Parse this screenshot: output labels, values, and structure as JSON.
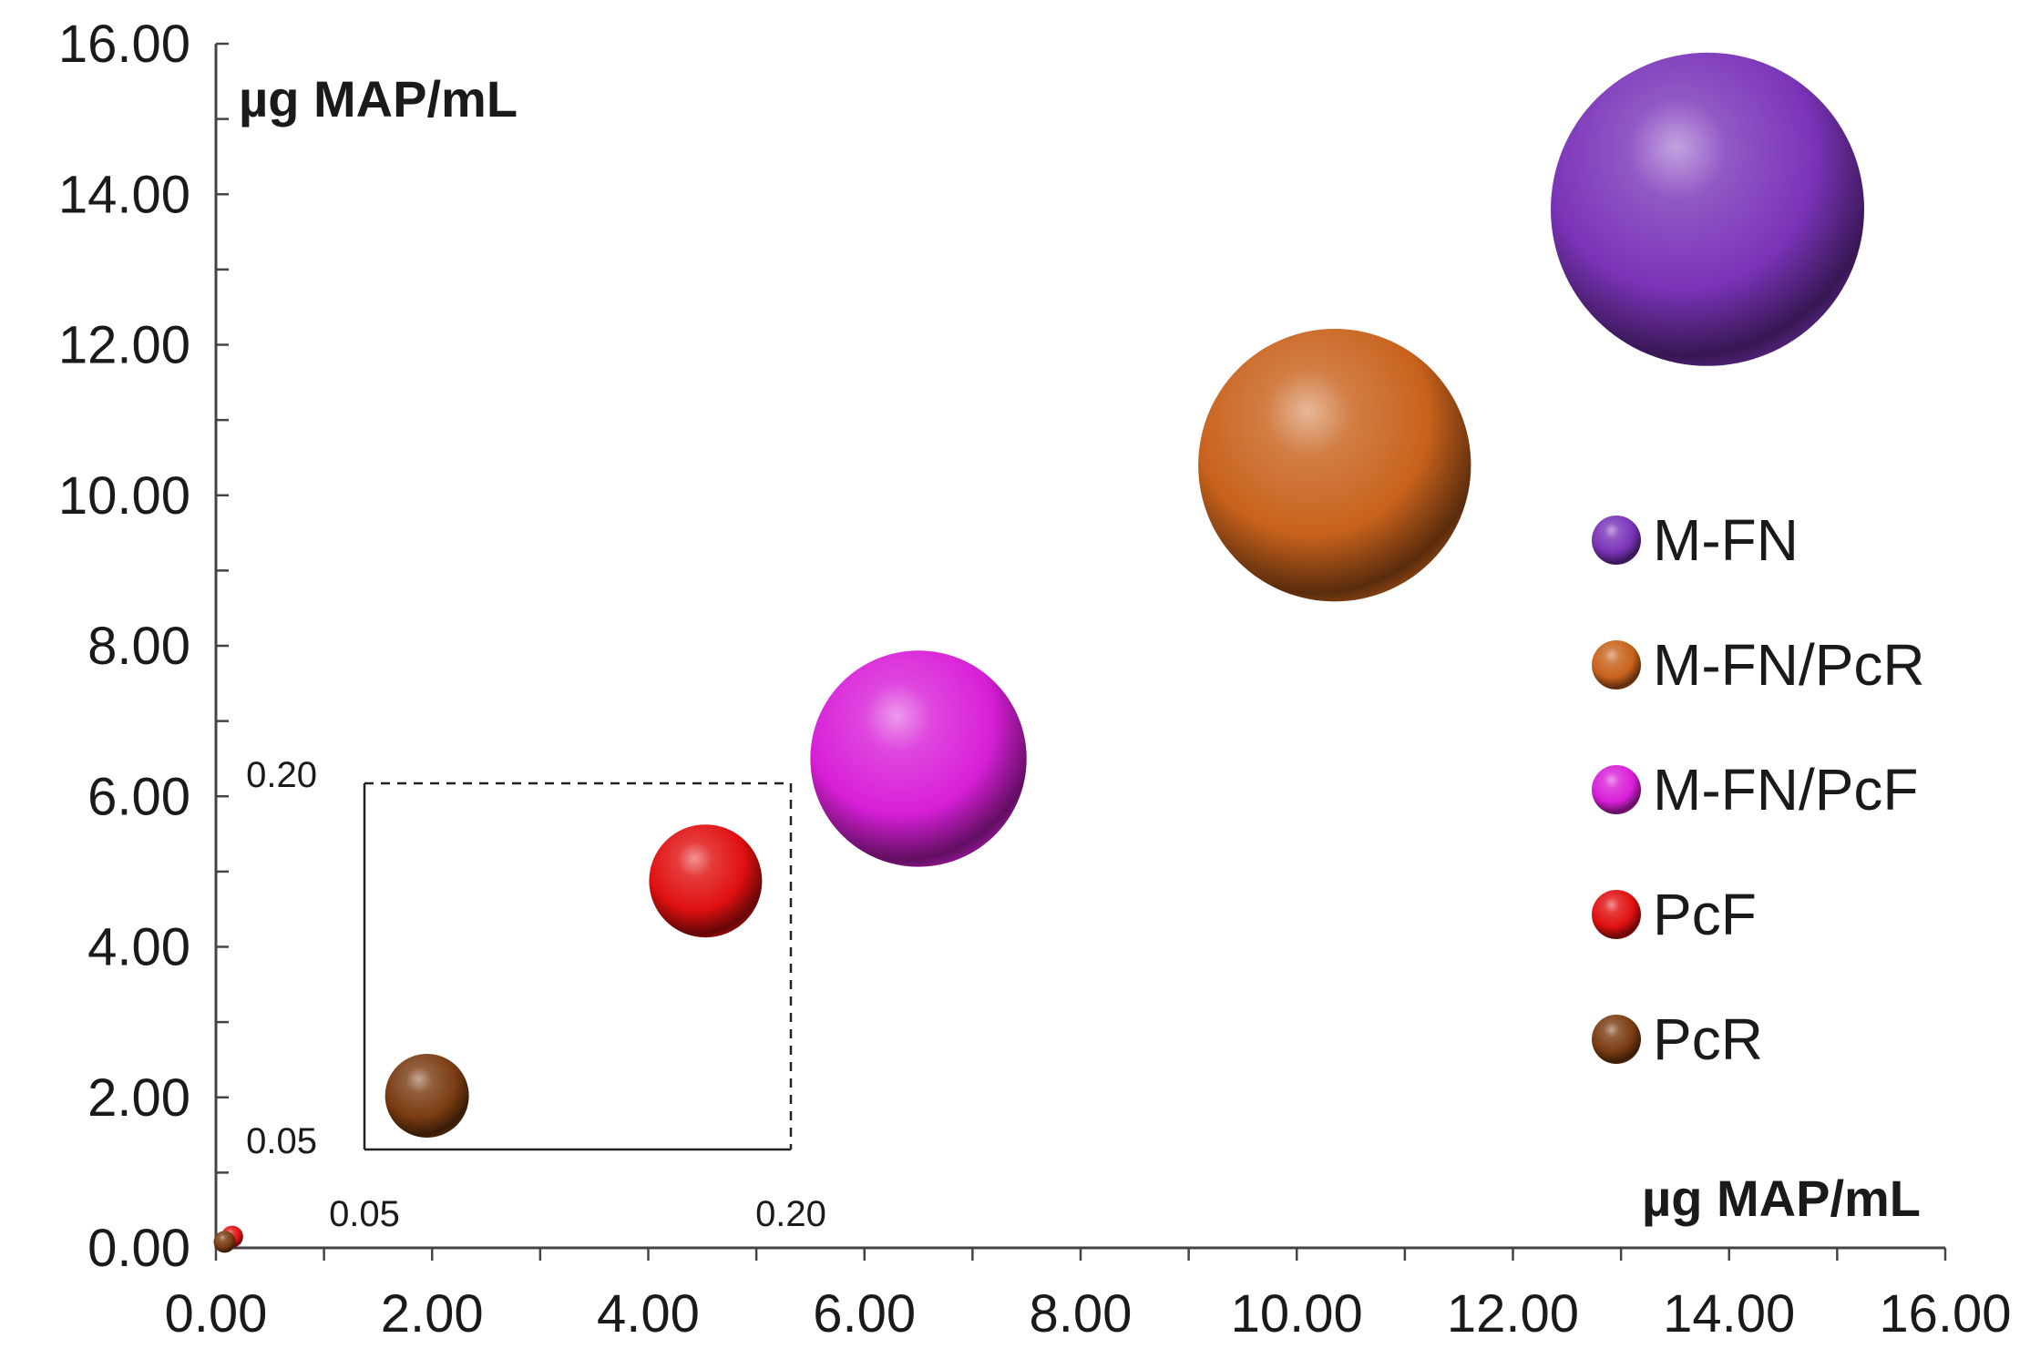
{
  "chart_data": {
    "type": "bubble",
    "x_axis": {
      "label": "µg MAP/mL",
      "range": [
        0,
        16
      ],
      "ticks": [
        "0.00",
        "2.00",
        "4.00",
        "6.00",
        "8.00",
        "10.00",
        "12.00",
        "14.00",
        "16.00"
      ],
      "minor_step": 1
    },
    "y_axis": {
      "label": "µg MAP/mL",
      "range": [
        0,
        16
      ],
      "ticks": [
        "0.00",
        "2.00",
        "4.00",
        "6.00",
        "8.00",
        "10.00",
        "12.00",
        "14.00",
        "16.00"
      ],
      "minor_step": 1
    },
    "series": [
      {
        "name": "M-FN",
        "x": 13.8,
        "y": 13.8,
        "size": 1.0,
        "color": "#7a33b8"
      },
      {
        "name": "M-FN/PcR",
        "x": 10.35,
        "y": 10.4,
        "size": 0.87,
        "color": "#c8621c"
      },
      {
        "name": "M-FN/PcF",
        "x": 6.5,
        "y": 6.5,
        "size": 0.69,
        "color": "#d81fd8"
      },
      {
        "name": "PcF",
        "x": 0.15,
        "y": 0.15,
        "size": 0.36,
        "color": "#e01010"
      },
      {
        "name": "PcR",
        "x": 0.08,
        "y": 0.08,
        "size": 0.26,
        "color": "#7a3c12"
      }
    ],
    "inset": {
      "range": [
        0.05,
        0.2
      ],
      "x_ticks": [
        "0.05",
        "0.20"
      ],
      "y_ticks": [
        "0.05",
        "0.20"
      ],
      "points": [
        {
          "name": "PcF",
          "x": 0.17,
          "y": 0.16
        },
        {
          "name": "PcR",
          "x": 0.072,
          "y": 0.072
        }
      ]
    },
    "legend": {
      "position": "right",
      "entries": [
        "M-FN",
        "M-FN/PcR",
        "M-FN/PcF",
        "PcF",
        "PcR"
      ]
    }
  }
}
